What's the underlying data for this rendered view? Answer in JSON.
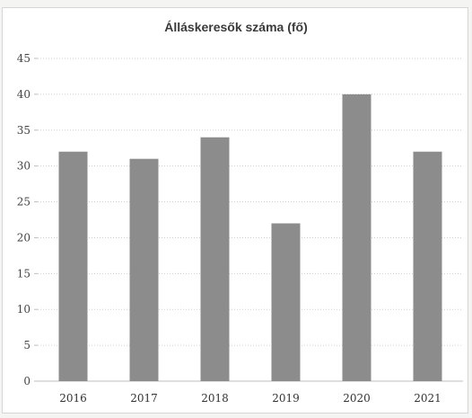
{
  "chart_data": {
    "type": "bar",
    "title": "Álláskeresők száma (fő)",
    "xlabel": "",
    "ylabel": "",
    "categories": [
      "2016",
      "2017",
      "2018",
      "2019",
      "2020",
      "2021"
    ],
    "values": [
      32,
      31,
      34,
      22,
      40,
      32
    ],
    "ylim": [
      0,
      45
    ],
    "yticks": [
      0,
      5,
      10,
      15,
      20,
      25,
      30,
      35,
      40,
      45
    ],
    "grid": true,
    "legend": "none",
    "colors": {
      "bar": "#8c8c8c",
      "grid": "#cfcfcf",
      "axis": "#bdbdbd"
    }
  }
}
